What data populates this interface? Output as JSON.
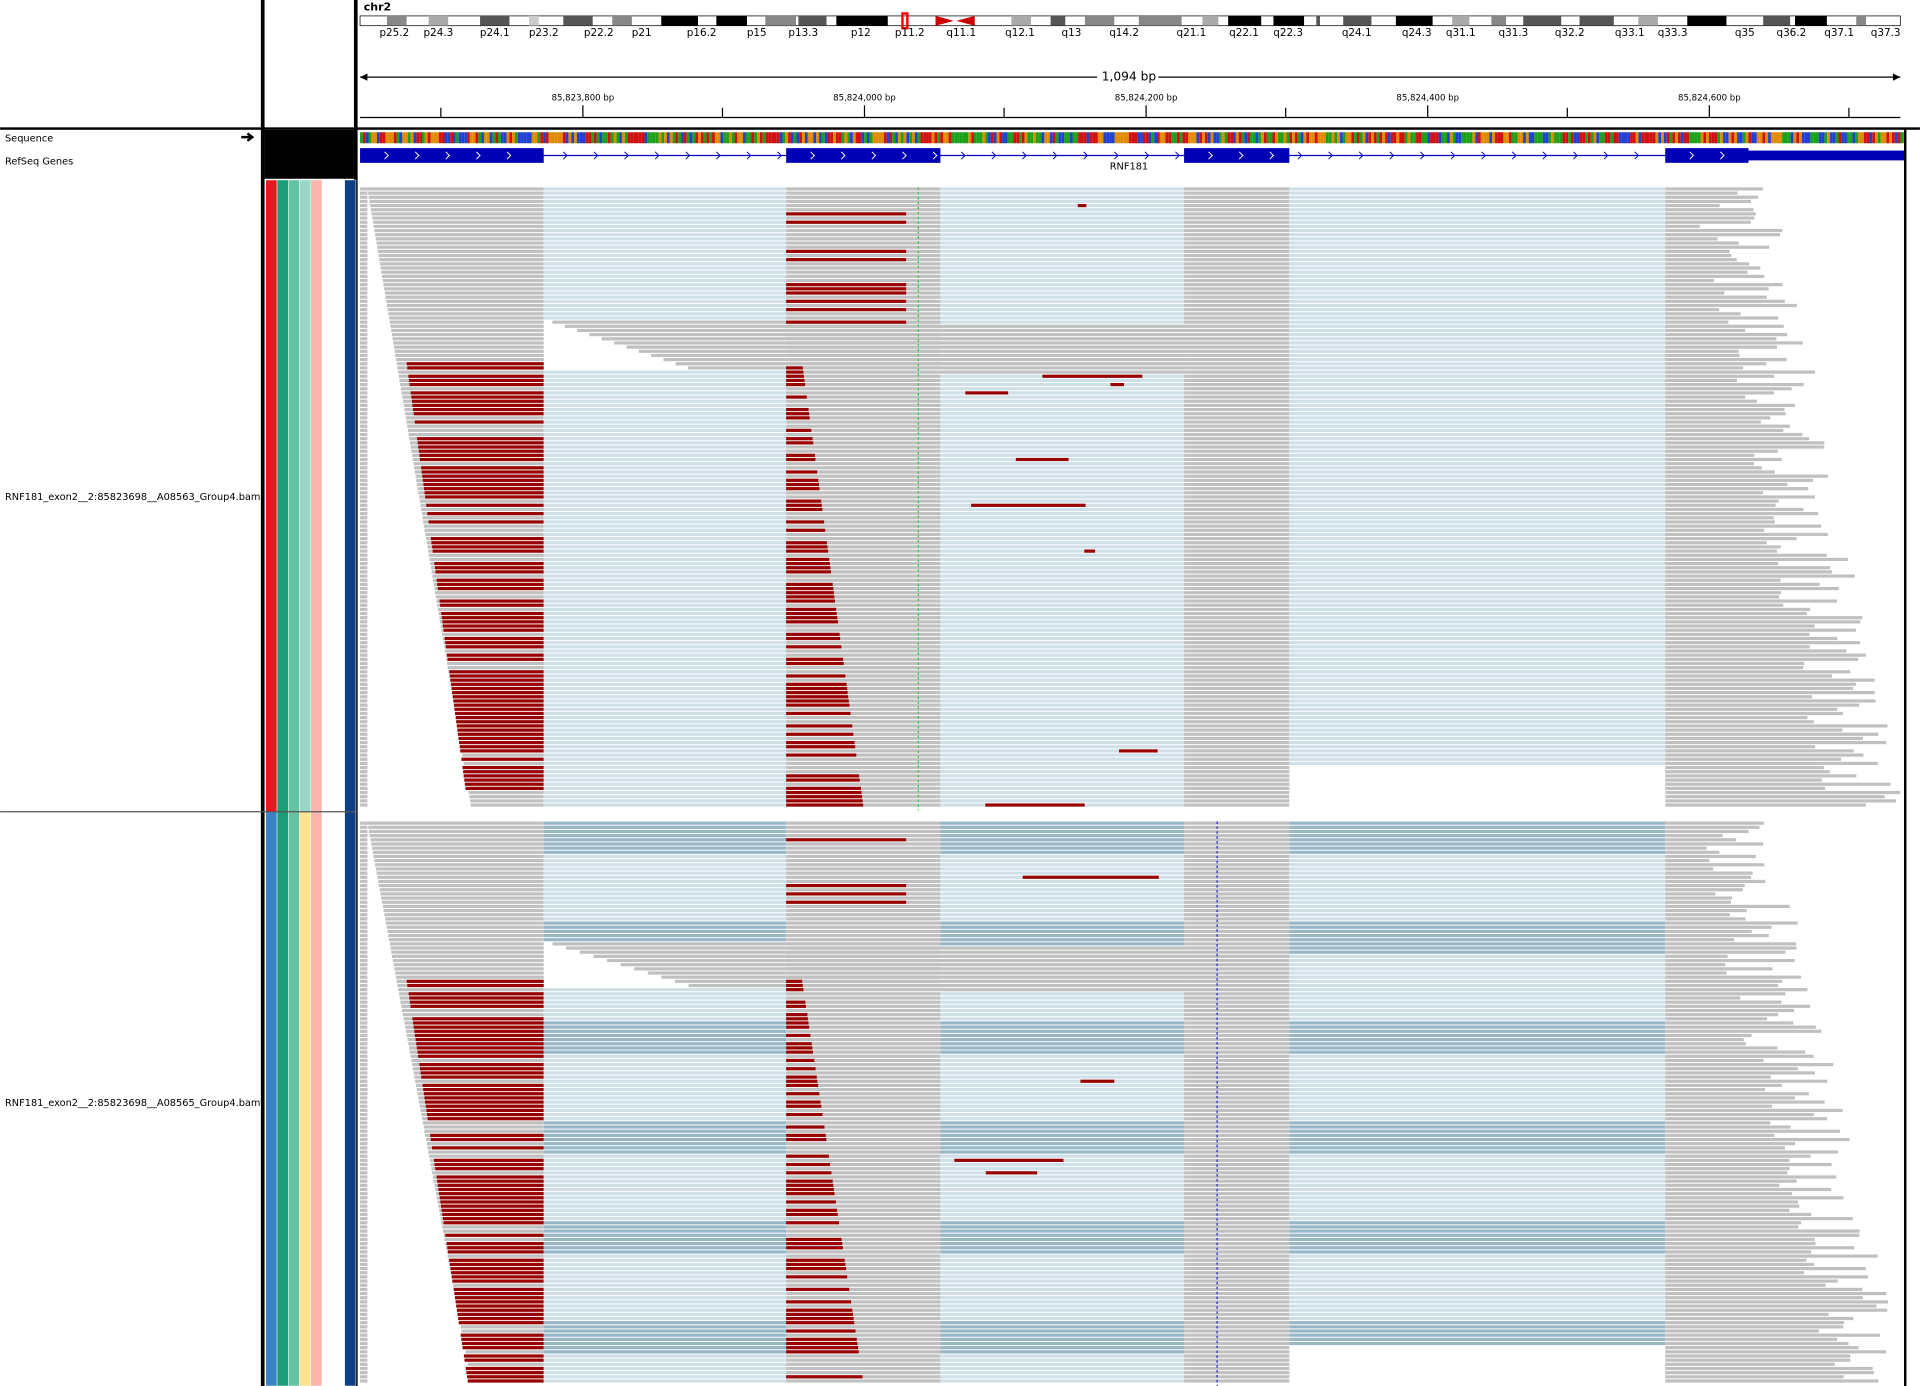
{
  "header": {
    "chromosome": "chr2",
    "cytobands": [
      "p25.2",
      "p24.3",
      "p24.1",
      "p23.2",
      "p22.2",
      "p21",
      "p16.2",
      "p15",
      "p13.3",
      "p12",
      "p11.2",
      "q11.1",
      "q12.1",
      "q13",
      "q14.2",
      "q21.1",
      "q22.1",
      "q22.3",
      "q24.1",
      "q24.3",
      "q31.1",
      "q31.3",
      "q32.2",
      "q33.1",
      "q33.3",
      "q35",
      "q36.2",
      "q37.1",
      "q37.3"
    ],
    "span": "1,094 bp",
    "ruler_ticks": [
      "85,823,800 bp",
      "85,824,000 bp",
      "85,824,200 bp",
      "85,824,400 bp",
      "85,824,600 bp"
    ]
  },
  "tracks": {
    "sequence": "Sequence",
    "refseq": "RefSeq Genes",
    "gene": "RNF181",
    "bams": [
      "RNF181_exon2__2:85823698__A08563_Group4.bam",
      "RNF181_exon2__2:85823698__A08565_Group4.bam"
    ]
  }
}
